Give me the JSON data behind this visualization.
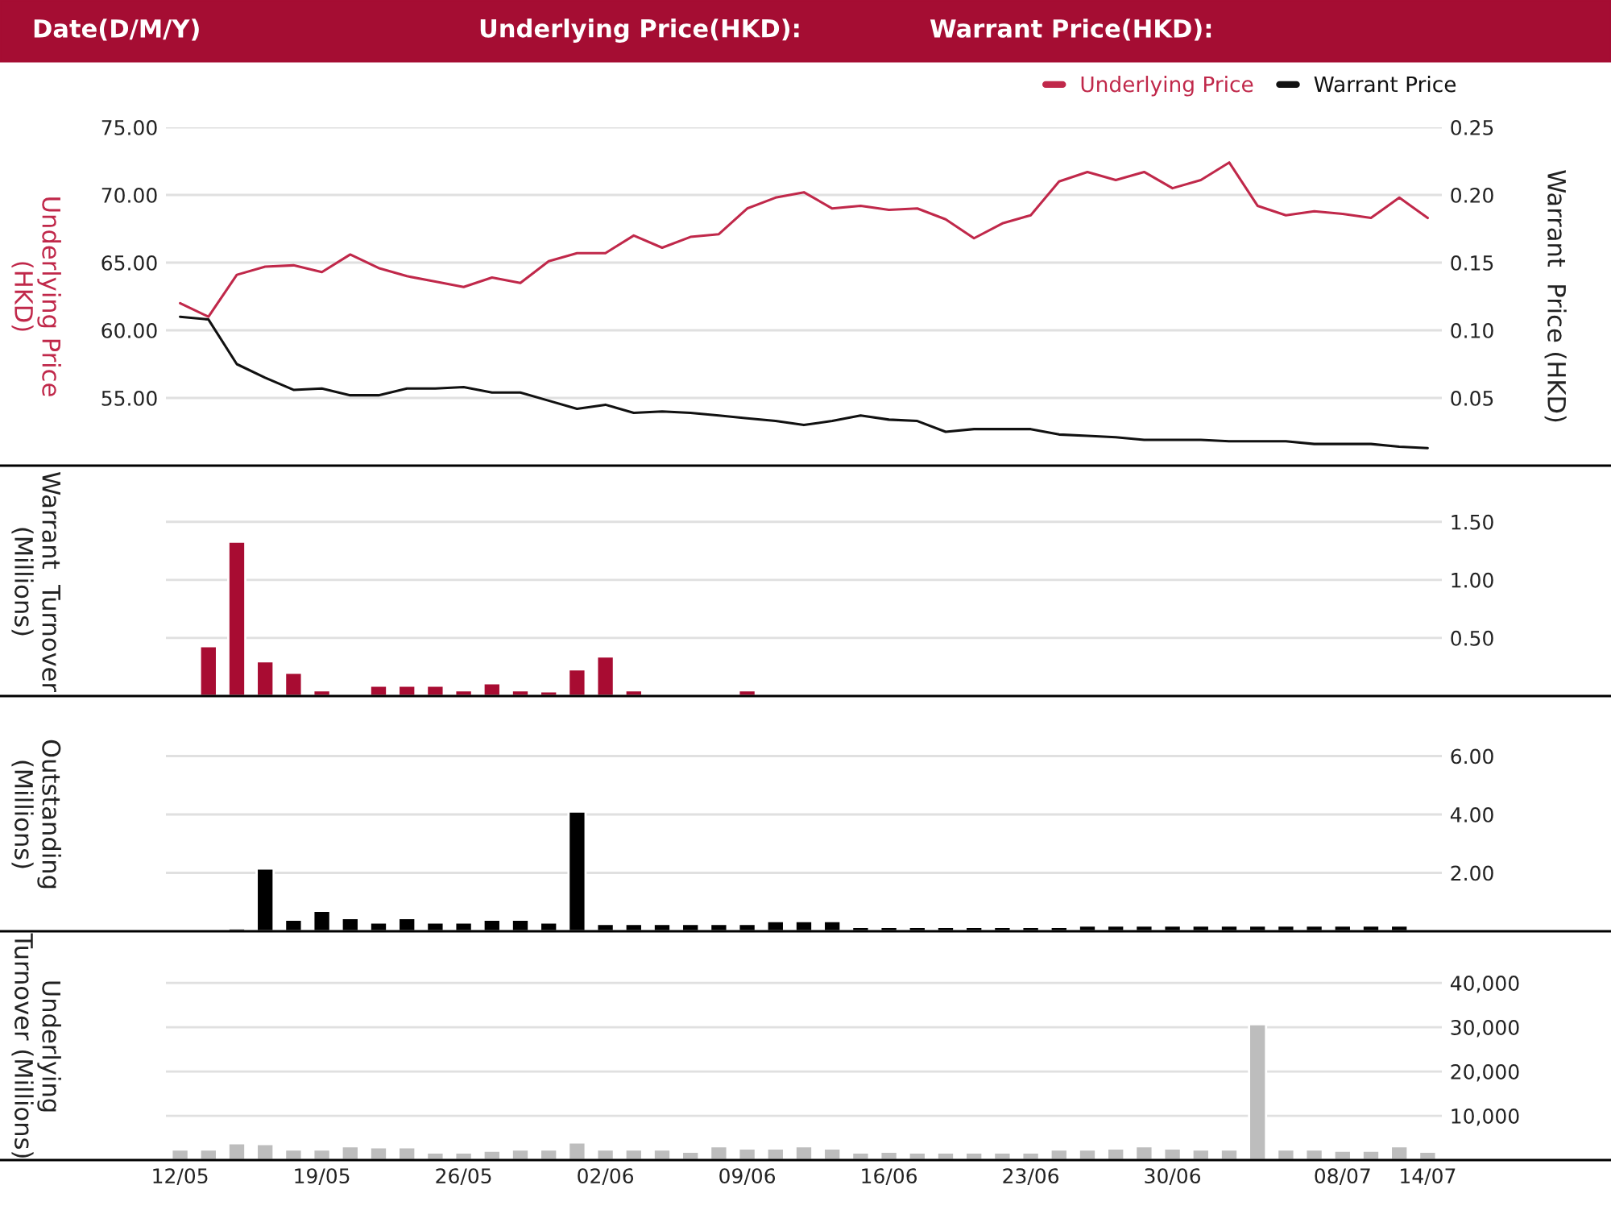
{
  "chart_data": [
    {
      "type": "line",
      "annotations": [
        "Date(D/M/Y)",
        "Underlying Price(HKD):",
        "Warrant Price(HKD):"
      ],
      "ylabel": "Underlying Price\n(HKD)",
      "y2label": "Warrant  Price (HKD)",
      "categories": [
        null,
        null,
        null,
        null,
        null,
        null,
        null,
        null,
        null,
        null,
        null,
        null,
        null,
        null,
        null,
        null,
        null,
        null,
        null,
        null,
        null,
        null,
        null,
        null,
        null,
        null,
        null,
        null,
        null,
        null,
        null,
        null,
        null,
        null,
        null,
        null,
        null,
        null,
        null,
        null,
        null,
        null,
        null,
        null,
        null
      ],
      "series": [
        {
          "name": "Underlying Price",
          "color": "#c0284a",
          "values": [
            62.0,
            61.0,
            64.1,
            64.7,
            64.8,
            64.3,
            65.6,
            64.6,
            64.0,
            63.6,
            63.2,
            63.9,
            63.5,
            65.1,
            65.7,
            65.7,
            67.0,
            66.1,
            66.9,
            67.1,
            69.0,
            69.8,
            70.2,
            69.0,
            69.2,
            68.9,
            69.0,
            68.2,
            66.8,
            67.9,
            68.5,
            71.0,
            71.7,
            71.1,
            71.7,
            70.5,
            71.1,
            72.4,
            69.2,
            68.5,
            68.8,
            68.6,
            68.3,
            69.8,
            68.3
          ]
        },
        {
          "name": "Warrant Price",
          "color": "#111111",
          "axis": "y2",
          "values": [
            0.11,
            0.108,
            0.075,
            0.065,
            0.056,
            0.057,
            0.052,
            0.052,
            0.057,
            0.057,
            0.058,
            0.054,
            0.054,
            0.048,
            0.042,
            0.045,
            0.039,
            0.04,
            0.039,
            0.037,
            0.035,
            0.033,
            0.03,
            0.033,
            0.037,
            0.034,
            0.033,
            0.025,
            0.027,
            0.027,
            0.027,
            0.023,
            0.022,
            0.021,
            0.019,
            0.019,
            0.019,
            0.018,
            0.018,
            0.018,
            0.016,
            0.016,
            0.016,
            0.014,
            0.013
          ]
        }
      ],
      "ylim": [
        50,
        75
      ],
      "yticks": [
        {
          "value": 55,
          "label": "55.00"
        },
        {
          "value": 60,
          "label": "60.00"
        },
        {
          "value": 65,
          "label": "65.00"
        },
        {
          "value": 70,
          "label": "70.00"
        },
        {
          "value": 75,
          "label": "75.00"
        }
      ],
      "y2lim": [
        0,
        0.25
      ],
      "y2ticks": [
        {
          "value": 0.05,
          "label": "0.05"
        },
        {
          "value": 0.1,
          "label": "0.10"
        },
        {
          "value": 0.15,
          "label": "0.15"
        },
        {
          "value": 0.2,
          "label": "0.20"
        },
        {
          "value": 0.25,
          "label": "0.25"
        }
      ],
      "grid": "y",
      "legend": "top right",
      "tick_labels": "y"
    },
    {
      "type": "bar",
      "ylabel": "Warrant  Turnover\n(Millions)",
      "categories": [
        null,
        null,
        null,
        null,
        null,
        null,
        null,
        null,
        null,
        null,
        null,
        null,
        null,
        null,
        null,
        null,
        null,
        null,
        null,
        null,
        null,
        null,
        null,
        null,
        null,
        null,
        null,
        null,
        null,
        null,
        null,
        null,
        null,
        null,
        null,
        null,
        null,
        null,
        null,
        null,
        null,
        null,
        null,
        null,
        null
      ],
      "color": "#a80c32",
      "values": [
        0.01,
        0.43,
        1.33,
        0.3,
        0.2,
        0.05,
        0.02,
        0.09,
        0.09,
        0.09,
        0.05,
        0.11,
        0.05,
        0.04,
        0.23,
        0.34,
        0.05,
        0.01,
        0.01,
        0.01,
        0.05,
        0.01,
        null,
        null,
        0.01,
        null,
        null,
        null,
        null,
        null,
        null,
        null,
        0.01,
        null,
        null,
        null,
        null,
        null,
        null,
        null,
        null,
        null,
        null,
        null,
        null
      ],
      "ylim": [
        0,
        1.97
      ],
      "yticks": [
        {
          "value": 0.5,
          "label": "0.50"
        },
        {
          "value": 1,
          "label": "1.00"
        },
        {
          "value": 1.5,
          "label": "1.50"
        }
      ],
      "grid": "y",
      "tick_labels": "y"
    },
    {
      "type": "bar",
      "ylabel": "Outstanding\n(Millions)",
      "categories": [
        null,
        null,
        null,
        null,
        null,
        null,
        null,
        null,
        null,
        null,
        null,
        null,
        null,
        null,
        null,
        null,
        null,
        null,
        null,
        null,
        null,
        null,
        null,
        null,
        null,
        null,
        null,
        null,
        null,
        null,
        null,
        null,
        null,
        null,
        null,
        null,
        null,
        null,
        null,
        null,
        null,
        null,
        null,
        null,
        null
      ],
      "color": "#000000",
      "values": [
        null,
        null,
        0.1,
        2.15,
        0.4,
        0.7,
        0.45,
        0.3,
        0.45,
        0.3,
        0.3,
        0.4,
        0.4,
        0.3,
        4.1,
        0.25,
        0.25,
        0.25,
        0.25,
        0.25,
        0.25,
        0.35,
        0.35,
        0.35,
        0.15,
        0.15,
        0.15,
        0.15,
        0.15,
        0.15,
        0.15,
        0.15,
        0.2,
        0.2,
        0.2,
        0.2,
        0.2,
        0.2,
        0.2,
        0.2,
        0.2,
        0.2,
        0.2,
        0.2,
        null
      ],
      "ylim": [
        0,
        8
      ],
      "yticks": [
        {
          "value": 2,
          "label": "2.00"
        },
        {
          "value": 4,
          "label": "4.00"
        },
        {
          "value": 6,
          "label": "6.00"
        }
      ],
      "grid": "y",
      "tick_labels": "y"
    },
    {
      "type": "bar",
      "ylabel": "Underlying\nTurnover (Millions)",
      "categories": [
        "12/05",
        null,
        null,
        null,
        null,
        "19/05",
        null,
        null,
        null,
        null,
        "26/05",
        null,
        null,
        null,
        null,
        "02/06",
        null,
        null,
        null,
        null,
        "09/06",
        null,
        null,
        null,
        null,
        "16/06",
        null,
        null,
        null,
        null,
        "23/06",
        null,
        null,
        null,
        null,
        "30/06",
        null,
        null,
        null,
        null,
        null,
        "08/07",
        null,
        null,
        "14/07"
      ],
      "color": "#bdbdbd",
      "values": [
        2400,
        2400,
        3800,
        3600,
        2400,
        2400,
        3100,
        2900,
        2900,
        1700,
        1700,
        2100,
        2400,
        2400,
        4000,
        2400,
        2400,
        2400,
        1900,
        3100,
        2600,
        2600,
        3100,
        2600,
        1700,
        1900,
        1700,
        1700,
        1700,
        1700,
        1700,
        2400,
        2400,
        2600,
        3100,
        2600,
        2400,
        2400,
        30700,
        2400,
        2400,
        2100,
        2100,
        3100,
        1900
      ],
      "ylim": [
        0,
        51300
      ],
      "yticks": [
        {
          "value": 10000,
          "label": "10,000"
        },
        {
          "value": 20000,
          "label": "20,000"
        },
        {
          "value": 30000,
          "label": "30,000"
        },
        {
          "value": 40000,
          "label": "40,000"
        }
      ],
      "grid": "y"
    }
  ]
}
